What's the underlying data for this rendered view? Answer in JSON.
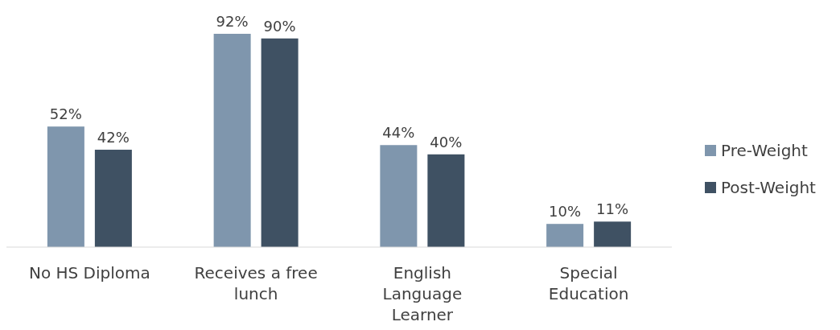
{
  "chart_data": {
    "type": "bar",
    "categories": [
      "No HS Diploma",
      "Receives a free lunch",
      "English Language Learner",
      "Special Education"
    ],
    "series": [
      {
        "name": "Pre-Weight",
        "color": "#7f96ad",
        "values": [
          52,
          92,
          44,
          10
        ],
        "value_labels": [
          "52%",
          "92%",
          "44%",
          "10%"
        ]
      },
      {
        "name": "Post-Weight",
        "color": "#3f5163",
        "values": [
          42,
          90,
          40,
          11
        ],
        "value_labels": [
          "42%",
          "90%",
          "40%",
          "11%"
        ]
      }
    ],
    "legend": "right"
  }
}
